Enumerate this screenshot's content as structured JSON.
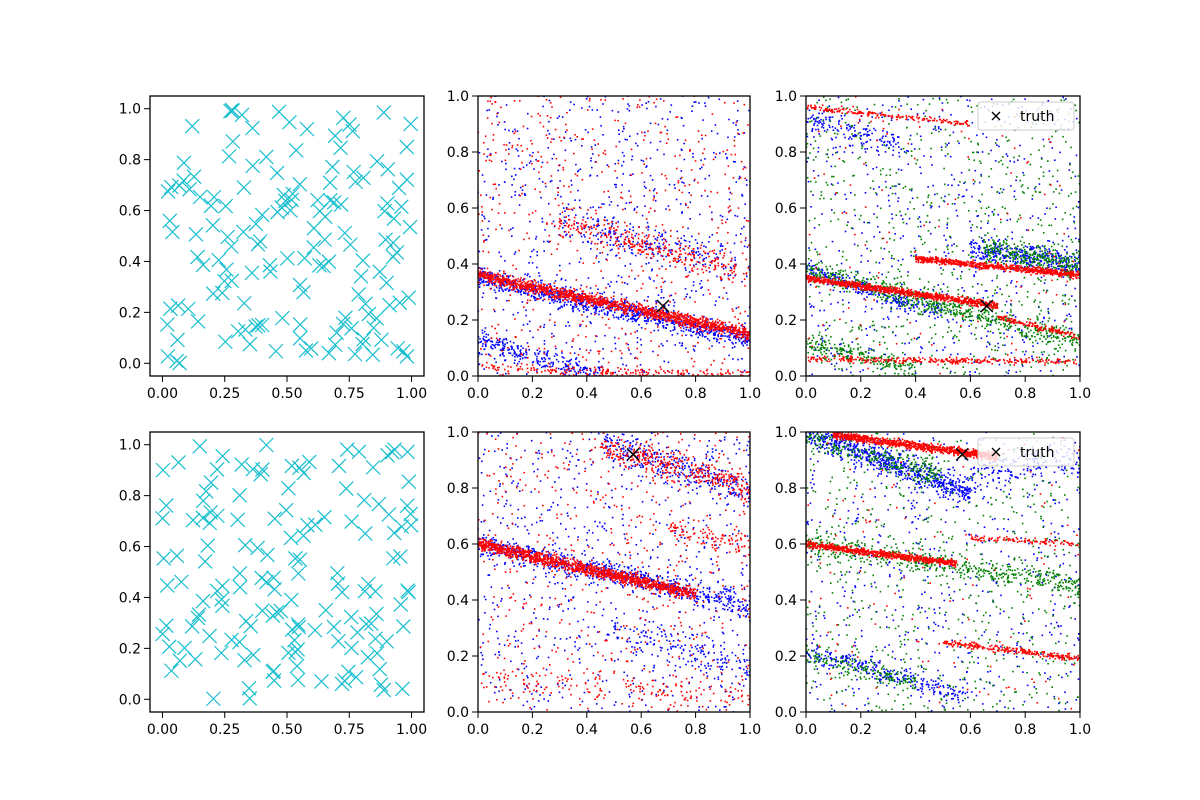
{
  "colors": {
    "cyan": "#17becf",
    "blue": "#0000ff",
    "red": "#ff0000",
    "green": "#008000",
    "black": "#000000"
  },
  "chart_data": [
    {
      "type": "scatter",
      "title": "",
      "xlabel": "",
      "ylabel": "",
      "xlim": [
        -0.05,
        1.05
      ],
      "ylim": [
        -0.05,
        1.05
      ],
      "xticks": [
        "0.00",
        "0.25",
        "0.50",
        "0.75",
        "1.00"
      ],
      "yticks": [
        "0.0",
        "0.2",
        "0.4",
        "0.6",
        "0.8",
        "1.0"
      ],
      "marker": "x",
      "color": "cyan",
      "n_points": 150,
      "seed": 11,
      "series": [
        {
          "name": "samples",
          "distribution": "uniform"
        }
      ]
    },
    {
      "type": "scatter",
      "title": "",
      "xlabel": "",
      "ylabel": "",
      "xlim": [
        0,
        1
      ],
      "ylim": [
        0,
        1
      ],
      "xticks": [
        "0.0",
        "0.2",
        "0.4",
        "0.6",
        "0.8",
        "1.0"
      ],
      "yticks": [
        "0.0",
        "0.2",
        "0.4",
        "0.6",
        "0.8",
        "1.0"
      ],
      "truth": {
        "x": 0.68,
        "y": 0.25
      },
      "series": [
        {
          "name": "blue",
          "color": "blue",
          "seed": 21,
          "noise": 700,
          "bands": [
            {
              "x0": 0.0,
              "y0": 0.35,
              "x1": 1.0,
              "y1": 0.13,
              "n": 900,
              "sd": 0.03
            },
            {
              "x0": 0.0,
              "y0": 0.13,
              "x1": 0.45,
              "y1": 0.0,
              "n": 250,
              "sd": 0.03
            },
            {
              "x0": 0.3,
              "y0": 0.55,
              "x1": 0.95,
              "y1": 0.4,
              "n": 200,
              "sd": 0.05
            }
          ]
        },
        {
          "name": "red",
          "color": "red",
          "seed": 22,
          "noise": 600,
          "bands": [
            {
              "x0": 0.0,
              "y0": 0.36,
              "x1": 1.0,
              "y1": 0.15,
              "n": 1400,
              "sd": 0.018
            },
            {
              "x0": 0.0,
              "y0": 0.03,
              "x1": 1.0,
              "y1": 0.0,
              "n": 200,
              "sd": 0.015
            },
            {
              "x0": 0.3,
              "y0": 0.55,
              "x1": 0.95,
              "y1": 0.38,
              "n": 280,
              "sd": 0.04
            }
          ]
        }
      ]
    },
    {
      "type": "scatter",
      "title": "",
      "xlabel": "",
      "ylabel": "",
      "xlim": [
        0,
        1
      ],
      "ylim": [
        0,
        1
      ],
      "xticks": [
        "0.0",
        "0.2",
        "0.4",
        "0.6",
        "0.8",
        "1.0"
      ],
      "yticks": [
        "0.0",
        "0.2",
        "0.4",
        "0.6",
        "0.8",
        "1.0"
      ],
      "truth": {
        "x": 0.66,
        "y": 0.25
      },
      "legend": {
        "label": "truth",
        "loc": "upper right"
      },
      "series": [
        {
          "name": "blue",
          "color": "blue",
          "seed": 31,
          "noise": 600,
          "bands": [
            {
              "x0": 0.0,
              "y0": 0.38,
              "x1": 0.5,
              "y1": 0.22,
              "n": 250,
              "sd": 0.03
            },
            {
              "x0": 0.6,
              "y0": 0.45,
              "x1": 1.0,
              "y1": 0.4,
              "n": 350,
              "sd": 0.04
            },
            {
              "x0": 0.0,
              "y0": 0.92,
              "x1": 0.35,
              "y1": 0.82,
              "n": 150,
              "sd": 0.04
            }
          ]
        },
        {
          "name": "green",
          "color": "green",
          "seed": 32,
          "noise": 700,
          "bands": [
            {
              "x0": 0.0,
              "y0": 0.38,
              "x1": 1.0,
              "y1": 0.12,
              "n": 600,
              "sd": 0.035
            },
            {
              "x0": 0.65,
              "y0": 0.45,
              "x1": 1.0,
              "y1": 0.4,
              "n": 300,
              "sd": 0.04
            },
            {
              "x0": 0.0,
              "y0": 0.12,
              "x1": 0.4,
              "y1": 0.02,
              "n": 200,
              "sd": 0.03
            }
          ]
        },
        {
          "name": "red",
          "color": "red",
          "seed": 33,
          "noise": 120,
          "bands": [
            {
              "x0": 0.0,
              "y0": 0.35,
              "x1": 0.7,
              "y1": 0.25,
              "n": 900,
              "sd": 0.01
            },
            {
              "x0": 0.4,
              "y0": 0.42,
              "x1": 1.0,
              "y1": 0.36,
              "n": 700,
              "sd": 0.01
            },
            {
              "x0": 0.0,
              "y0": 0.06,
              "x1": 1.0,
              "y1": 0.05,
              "n": 300,
              "sd": 0.01
            },
            {
              "x0": 0.0,
              "y0": 0.96,
              "x1": 0.6,
              "y1": 0.9,
              "n": 180,
              "sd": 0.008
            },
            {
              "x0": 0.7,
              "y0": 0.21,
              "x1": 1.0,
              "y1": 0.14,
              "n": 150,
              "sd": 0.01
            }
          ]
        }
      ]
    },
    {
      "type": "scatter",
      "title": "",
      "xlabel": "",
      "ylabel": "",
      "xlim": [
        -0.05,
        1.05
      ],
      "ylim": [
        -0.05,
        1.05
      ],
      "xticks": [
        "0.00",
        "0.25",
        "0.50",
        "0.75",
        "1.00"
      ],
      "yticks": [
        "0.0",
        "0.2",
        "0.4",
        "0.6",
        "0.8",
        "1.0"
      ],
      "marker": "x",
      "color": "cyan",
      "n_points": 150,
      "seed": 12,
      "series": [
        {
          "name": "samples",
          "distribution": "uniform"
        }
      ]
    },
    {
      "type": "scatter",
      "title": "",
      "xlabel": "",
      "ylabel": "",
      "xlim": [
        0,
        1
      ],
      "ylim": [
        0,
        1
      ],
      "xticks": [
        "0.0",
        "0.2",
        "0.4",
        "0.6",
        "0.8",
        "1.0"
      ],
      "yticks": [
        "0.0",
        "0.2",
        "0.4",
        "0.6",
        "0.8",
        "1.0"
      ],
      "truth": {
        "x": 0.57,
        "y": 0.92
      },
      "series": [
        {
          "name": "blue",
          "color": "blue",
          "seed": 41,
          "noise": 700,
          "bands": [
            {
              "x0": 0.0,
              "y0": 0.6,
              "x1": 1.0,
              "y1": 0.38,
              "n": 700,
              "sd": 0.035
            },
            {
              "x0": 0.45,
              "y0": 0.97,
              "x1": 1.0,
              "y1": 0.78,
              "n": 300,
              "sd": 0.05
            },
            {
              "x0": 0.5,
              "y0": 0.3,
              "x1": 1.0,
              "y1": 0.15,
              "n": 150,
              "sd": 0.05
            }
          ]
        },
        {
          "name": "red",
          "color": "red",
          "seed": 42,
          "noise": 550,
          "bands": [
            {
              "x0": 0.0,
              "y0": 0.6,
              "x1": 0.8,
              "y1": 0.42,
              "n": 1300,
              "sd": 0.018
            },
            {
              "x0": 0.45,
              "y0": 0.95,
              "x1": 1.0,
              "y1": 0.8,
              "n": 350,
              "sd": 0.04
            },
            {
              "x0": 0.7,
              "y0": 0.65,
              "x1": 1.0,
              "y1": 0.6,
              "n": 100,
              "sd": 0.03
            },
            {
              "x0": 0.0,
              "y0": 0.12,
              "x1": 1.0,
              "y1": 0.05,
              "n": 150,
              "sd": 0.04
            }
          ]
        }
      ]
    },
    {
      "type": "scatter",
      "title": "",
      "xlabel": "",
      "ylabel": "",
      "xlim": [
        0,
        1
      ],
      "ylim": [
        0,
        1
      ],
      "xticks": [
        "0.0",
        "0.2",
        "0.4",
        "0.6",
        "0.8",
        "1.0"
      ],
      "yticks": [
        "0.0",
        "0.2",
        "0.4",
        "0.6",
        "0.8",
        "1.0"
      ],
      "truth": {
        "x": 0.57,
        "y": 0.92
      },
      "legend": {
        "label": "truth",
        "loc": "upper right"
      },
      "series": [
        {
          "name": "blue",
          "color": "blue",
          "seed": 51,
          "noise": 600,
          "bands": [
            {
              "x0": 0.0,
              "y0": 1.0,
              "x1": 0.6,
              "y1": 0.78,
              "n": 700,
              "sd": 0.04
            },
            {
              "x0": 0.0,
              "y0": 0.22,
              "x1": 0.6,
              "y1": 0.05,
              "n": 250,
              "sd": 0.03
            },
            {
              "x0": 0.6,
              "y0": 0.85,
              "x1": 1.0,
              "y1": 0.9,
              "n": 150,
              "sd": 0.05
            }
          ]
        },
        {
          "name": "green",
          "color": "green",
          "seed": 52,
          "noise": 600,
          "bands": [
            {
              "x0": 0.0,
              "y0": 0.6,
              "x1": 1.0,
              "y1": 0.45,
              "n": 500,
              "sd": 0.035
            },
            {
              "x0": 0.0,
              "y0": 0.98,
              "x1": 0.5,
              "y1": 0.85,
              "n": 250,
              "sd": 0.04
            },
            {
              "x0": 0.0,
              "y0": 0.2,
              "x1": 0.4,
              "y1": 0.1,
              "n": 150,
              "sd": 0.03
            }
          ]
        },
        {
          "name": "red",
          "color": "red",
          "seed": 53,
          "noise": 120,
          "bands": [
            {
              "x0": 0.0,
              "y0": 0.6,
              "x1": 0.55,
              "y1": 0.53,
              "n": 700,
              "sd": 0.01
            },
            {
              "x0": 0.1,
              "y0": 0.99,
              "x1": 0.7,
              "y1": 0.91,
              "n": 900,
              "sd": 0.012
            },
            {
              "x0": 0.5,
              "y0": 0.25,
              "x1": 1.0,
              "y1": 0.19,
              "n": 250,
              "sd": 0.01
            },
            {
              "x0": 0.6,
              "y0": 0.62,
              "x1": 1.0,
              "y1": 0.6,
              "n": 100,
              "sd": 0.01
            }
          ]
        }
      ]
    }
  ]
}
